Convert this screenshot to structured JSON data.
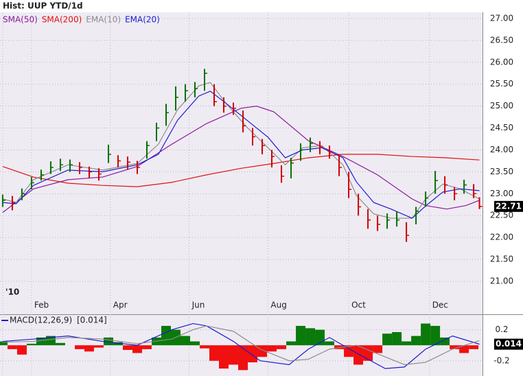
{
  "chart_data": [
    {
      "type": "ohlc",
      "title": "Hist: UUP YTD/1d",
      "grid": true,
      "up_color": "#007000",
      "down_color": "#d00000",
      "xlim": [
        -1.4,
        249.6
      ],
      "ylim": [
        20.64,
        27.14
      ],
      "xticks": [
        {
          "value": 0,
          "label": "'10"
        },
        {
          "value": 15,
          "label": "Feb"
        },
        {
          "value": 56,
          "label": "Apr"
        },
        {
          "value": 97,
          "label": "Jun"
        },
        {
          "value": 138,
          "label": "Aug"
        },
        {
          "value": 180,
          "label": "Oct"
        },
        {
          "value": 222,
          "label": "Dec"
        }
      ],
      "yticks": [
        {
          "value": 21,
          "label": "21.00"
        },
        {
          "value": 21.5,
          "label": "21.50"
        },
        {
          "value": 22,
          "label": "22.00"
        },
        {
          "value": 22.5,
          "label": "22.50"
        },
        {
          "value": 23,
          "label": "23.00"
        },
        {
          "value": 23.5,
          "label": "23.50"
        },
        {
          "value": 24,
          "label": "24.00"
        },
        {
          "value": 24.5,
          "label": "24.50"
        },
        {
          "value": 25,
          "label": "25.00"
        },
        {
          "value": 25.5,
          "label": "25.50"
        },
        {
          "value": 26,
          "label": "26.00"
        },
        {
          "value": 26.5,
          "label": "26.50"
        },
        {
          "value": 27,
          "label": "27.00"
        }
      ],
      "x": [
        0,
        5,
        10,
        15,
        20,
        25,
        30,
        35,
        40,
        45,
        50,
        55,
        60,
        65,
        70,
        75,
        80,
        85,
        90,
        95,
        100,
        105,
        110,
        115,
        120,
        125,
        130,
        135,
        140,
        145,
        150,
        155,
        160,
        165,
        170,
        175,
        180,
        185,
        190,
        195,
        200,
        205,
        210,
        215,
        220,
        225,
        230,
        235,
        240,
        245,
        248
      ],
      "high": [
        22.98,
        22.95,
        23.12,
        23.38,
        23.55,
        23.74,
        23.8,
        23.78,
        23.72,
        23.62,
        23.58,
        24.12,
        23.88,
        23.85,
        23.75,
        24.2,
        24.62,
        25.05,
        25.45,
        25.5,
        25.55,
        25.85,
        25.5,
        25.2,
        25.08,
        24.9,
        24.5,
        24.25,
        24.0,
        23.65,
        23.82,
        24.15,
        24.28,
        24.2,
        24.1,
        23.9,
        23.5,
        23.0,
        22.65,
        22.5,
        22.55,
        22.6,
        22.35,
        22.7,
        23.05,
        23.52,
        23.4,
        23.15,
        23.32,
        23.22,
        22.92
      ],
      "low": [
        22.7,
        22.62,
        22.85,
        23.1,
        23.3,
        23.45,
        23.52,
        23.5,
        23.45,
        23.35,
        23.3,
        23.7,
        23.6,
        23.55,
        23.45,
        23.8,
        24.2,
        24.55,
        24.9,
        25.1,
        25.2,
        25.35,
        25.0,
        24.85,
        24.8,
        24.4,
        24.1,
        23.9,
        23.6,
        23.25,
        23.35,
        23.75,
        23.95,
        23.9,
        23.8,
        23.4,
        22.9,
        22.5,
        22.2,
        22.15,
        22.2,
        22.25,
        21.9,
        22.3,
        22.7,
        23.0,
        23.0,
        22.85,
        23.0,
        22.9,
        22.65
      ],
      "close": [
        22.85,
        22.8,
        23.0,
        23.25,
        23.43,
        23.6,
        23.66,
        23.66,
        23.6,
        23.5,
        23.45,
        23.9,
        23.75,
        23.72,
        23.6,
        24.1,
        24.5,
        24.85,
        25.2,
        25.35,
        25.4,
        25.75,
        25.1,
        25.0,
        24.95,
        24.55,
        24.3,
        24.1,
        23.85,
        23.4,
        23.7,
        24.0,
        24.15,
        24.05,
        23.95,
        23.6,
        23.1,
        22.7,
        22.4,
        22.3,
        22.4,
        22.4,
        22.05,
        22.6,
        22.9,
        23.3,
        23.2,
        23.0,
        23.2,
        23.0,
        22.71
      ],
      "series": [
        {
          "name": "SMA(50)",
          "color": "#8a1a9a",
          "x": [
            0,
            16,
            34,
            52,
            70,
            88,
            106,
            124,
            132,
            141,
            159,
            177,
            195,
            213,
            220,
            231,
            241,
            248
          ],
          "values": [
            22.57,
            23.11,
            23.32,
            23.38,
            23.62,
            24.13,
            24.6,
            24.95,
            25.0,
            24.87,
            24.21,
            23.85,
            23.43,
            22.88,
            22.73,
            22.65,
            22.73,
            22.85
          ]
        },
        {
          "name": "SMA(200)",
          "color": "#e01010",
          "x": [
            0,
            16,
            34,
            52,
            70,
            88,
            106,
            124,
            141,
            159,
            177,
            195,
            213,
            231,
            248
          ],
          "values": [
            23.62,
            23.38,
            23.24,
            23.19,
            23.16,
            23.26,
            23.43,
            23.58,
            23.69,
            23.82,
            23.9,
            23.9,
            23.85,
            23.82,
            23.77
          ]
        },
        {
          "name": "EMA(10)",
          "color": "#8c8c8c",
          "x": [
            0,
            7,
            16,
            34,
            52,
            70,
            81,
            91,
            102,
            108,
            116,
            127,
            138,
            147,
            156,
            166,
            177,
            184,
            193,
            202,
            213,
            220,
            229,
            238,
            248
          ],
          "values": [
            22.88,
            22.8,
            23.32,
            23.66,
            23.54,
            23.69,
            24.13,
            24.92,
            25.46,
            25.54,
            25.07,
            24.52,
            24.05,
            23.66,
            24.05,
            24.1,
            23.66,
            22.96,
            22.54,
            22.44,
            22.44,
            22.88,
            23.22,
            23.11,
            22.88
          ]
        },
        {
          "name": "EMA(20)",
          "color": "#1a1ad0",
          "x": [
            0,
            7,
            16,
            34,
            52,
            70,
            81,
            91,
            102,
            108,
            116,
            127,
            138,
            147,
            156,
            166,
            177,
            184,
            193,
            202,
            213,
            220,
            229,
            238,
            248
          ],
          "values": [
            22.8,
            22.77,
            23.19,
            23.54,
            23.5,
            23.66,
            23.9,
            24.68,
            25.23,
            25.34,
            25.07,
            24.68,
            24.29,
            23.82,
            24.0,
            24.05,
            23.82,
            23.27,
            22.8,
            22.65,
            22.44,
            22.72,
            23.04,
            23.11,
            23.07
          ]
        }
      ]
    },
    {
      "type": "macd",
      "title": "MACD(12,26,9)",
      "legend_value": "[0.014]",
      "grid": true,
      "xlim": [
        -1.4,
        249.6
      ],
      "ylim": [
        -0.396,
        0.391
      ],
      "yticks": [
        0.2,
        -0.2
      ],
      "positive_color": "#0a7a0a",
      "negative_color": "#f01010",
      "histogram_x": [
        0,
        5,
        10,
        15,
        20,
        25,
        30,
        35,
        40,
        45,
        50,
        55,
        60,
        65,
        70,
        75,
        80,
        85,
        90,
        95,
        100,
        105,
        110,
        115,
        120,
        125,
        130,
        135,
        140,
        145,
        150,
        155,
        160,
        165,
        170,
        175,
        180,
        185,
        190,
        195,
        200,
        205,
        210,
        215,
        220,
        225,
        230,
        235,
        240,
        245
      ],
      "histogram": [
        0.05,
        -0.05,
        -0.12,
        0.02,
        0.1,
        0.12,
        0.03,
        0.0,
        -0.05,
        -0.08,
        -0.03,
        0.1,
        0.04,
        -0.06,
        -0.1,
        -0.05,
        0.1,
        0.25,
        0.2,
        0.12,
        0.05,
        -0.04,
        -0.2,
        -0.3,
        -0.25,
        -0.32,
        -0.22,
        -0.15,
        -0.08,
        -0.05,
        0.05,
        0.25,
        0.22,
        0.2,
        0.05,
        -0.05,
        -0.15,
        -0.25,
        -0.2,
        -0.1,
        0.15,
        0.17,
        0.05,
        0.12,
        0.28,
        0.25,
        0.1,
        -0.05,
        -0.1,
        -0.05
      ],
      "series": [
        {
          "name": "MACD(12,26,9)",
          "color": "#1a1ad0",
          "x": [
            0,
            16,
            34,
            52,
            70,
            88,
            99,
            106,
            120,
            134,
            149,
            159,
            170,
            184,
            199,
            209,
            220,
            234,
            248
          ],
          "values": [
            0.05,
            0.08,
            0.12,
            0.05,
            0.0,
            0.2,
            0.28,
            0.25,
            0.05,
            -0.2,
            -0.25,
            -0.05,
            0.1,
            -0.1,
            -0.3,
            -0.28,
            -0.05,
            0.12,
            0.014
          ]
        },
        {
          "color": "#8c8c8c",
          "x": [
            0,
            16,
            34,
            52,
            70,
            88,
            99,
            106,
            120,
            134,
            149,
            159,
            170,
            184,
            199,
            209,
            220,
            234,
            248
          ],
          "values": [
            0.04,
            0.05,
            0.1,
            0.08,
            0.02,
            0.08,
            0.2,
            0.25,
            0.18,
            -0.05,
            -0.2,
            -0.18,
            -0.05,
            0.0,
            -0.15,
            -0.25,
            -0.22,
            -0.05,
            0.06
          ]
        }
      ]
    }
  ]
}
